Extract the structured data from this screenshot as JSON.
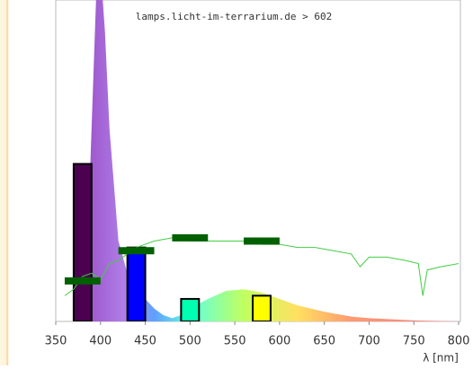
{
  "chart_data": {
    "type": "spectrum",
    "title": "lamps.licht-im-terrarium.de > 602",
    "x_label": "λ [nm]",
    "xlim": [
      350,
      800
    ],
    "xticks": [
      350,
      400,
      450,
      500,
      550,
      600,
      650,
      700,
      750,
      800
    ],
    "ylim": [
      0,
      100
    ],
    "bars": {
      "x_ranges": [
        [
          370,
          390
        ],
        [
          430,
          450
        ],
        [
          490,
          510
        ],
        [
          570,
          590
        ]
      ],
      "values": [
        49,
        23,
        7,
        8
      ],
      "colors": [
        "#4b0050",
        "#0000ff",
        "#00ffb0",
        "#ffff00"
      ]
    },
    "bands": {
      "x_ranges": [
        [
          360,
          400
        ],
        [
          420,
          460
        ],
        [
          480,
          520
        ],
        [
          560,
          600
        ]
      ],
      "values": [
        12.6,
        22,
        26,
        25
      ],
      "color": "#006000"
    },
    "spectrum": {
      "x": [
        380,
        385,
        390,
        395,
        400,
        405,
        410,
        420,
        430,
        440,
        450,
        460,
        470,
        480,
        490,
        500,
        520,
        540,
        560,
        580,
        600,
        620,
        650,
        680,
        700,
        750,
        800
      ],
      "values": [
        0,
        20,
        60,
        100,
        110,
        90,
        60,
        25,
        15,
        10,
        7,
        4,
        2,
        1,
        2,
        4,
        7,
        9.5,
        10,
        9,
        7,
        5,
        3,
        1.5,
        1,
        0.3,
        0
      ]
    },
    "reference": {
      "color": "#44cc44",
      "x": [
        360,
        370,
        380,
        390,
        400,
        410,
        420,
        430,
        440,
        450,
        460,
        480,
        500,
        520,
        540,
        560,
        580,
        600,
        620,
        640,
        660,
        680,
        690,
        700,
        720,
        740,
        755,
        760,
        765,
        780,
        800
      ],
      "values": [
        8,
        10,
        14,
        15,
        13,
        18,
        19,
        21,
        23,
        24,
        25,
        26,
        25,
        25,
        25,
        25,
        24,
        24,
        23,
        23,
        22,
        21,
        17,
        20,
        20,
        19,
        18,
        8,
        16,
        17,
        18
      ]
    }
  }
}
